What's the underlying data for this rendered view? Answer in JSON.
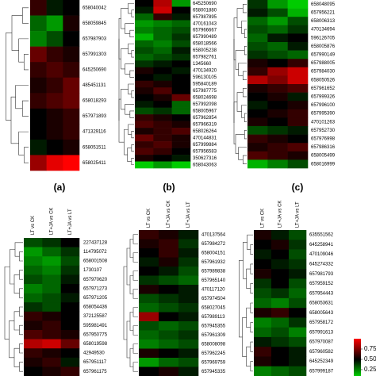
{
  "chart_data": [
    {
      "type": "heatmap",
      "panel_label": "(a)",
      "rows": [
        "658040042",
        "658059845",
        "657987903",
        "657991303",
        "645250690",
        "485451131",
        "658018293",
        "657971893",
        "471329116",
        "658051511",
        "658025411"
      ],
      "values": [
        [
          0.6,
          0.45,
          0.5
        ],
        [
          0.3,
          0.2,
          0.55
        ],
        [
          0.25,
          0.35,
          0.5
        ],
        [
          0.7,
          0.6,
          0.55
        ],
        [
          0.6,
          0.65,
          0.6
        ],
        [
          0.55,
          0.6,
          0.7
        ],
        [
          0.6,
          0.65,
          0.7
        ],
        [
          0.5,
          0.55,
          0.6
        ],
        [
          0.5,
          0.55,
          0.6
        ],
        [
          0.45,
          0.5,
          0.55
        ],
        [
          0.8,
          0.95,
          1.0
        ]
      ]
    },
    {
      "type": "heatmap",
      "panel_label": "(b)",
      "rows": [
        "645250690",
        "658001880",
        "657987895",
        "470161043",
        "657966667",
        "657990489",
        "658018566",
        "658005238",
        "657982761",
        "1345660",
        "470134920",
        "596130105",
        "595840189",
        "657987775",
        "658024698",
        "657992098",
        "658005967",
        "657962854",
        "657966319",
        "658026264",
        "470144831",
        "657999884",
        "657956583",
        "350627316",
        "658043063"
      ],
      "values": [
        [
          0.5,
          0.85,
          0.2
        ],
        [
          0.45,
          0.9,
          0.5
        ],
        [
          0.3,
          0.6,
          0.45
        ],
        [
          0.2,
          0.25,
          0.3
        ],
        [
          0.25,
          0.3,
          0.35
        ],
        [
          0.15,
          0.3,
          0.4
        ],
        [
          0.3,
          0.25,
          0.35
        ],
        [
          0.35,
          0.3,
          0.45
        ],
        [
          0.3,
          0.35,
          0.4
        ],
        [
          0.4,
          0.45,
          0.5
        ],
        [
          0.55,
          0.5,
          0.45
        ],
        [
          0.5,
          0.45,
          0.5
        ],
        [
          0.6,
          0.55,
          0.5
        ],
        [
          0.55,
          0.65,
          0.5
        ],
        [
          0.5,
          0.55,
          0.7
        ],
        [
          0.45,
          0.5,
          0.3
        ],
        [
          0.35,
          0.4,
          0.3
        ],
        [
          0.6,
          0.55,
          0.5
        ],
        [
          0.65,
          0.6,
          0.55
        ],
        [
          0.55,
          0.6,
          0.65
        ],
        [
          0.7,
          0.6,
          0.55
        ],
        [
          0.6,
          0.65,
          0.55
        ],
        [
          0.65,
          0.6,
          0.5
        ],
        [
          0.55,
          0.5,
          0.45
        ],
        [
          0.1,
          0.2,
          0.1
        ]
      ]
    },
    {
      "type": "heatmap",
      "panel_label": "(c)",
      "rows": [
        "658048095",
        "657956221",
        "658006313",
        "470134694",
        "596126705",
        "658005876",
        "657990149",
        "657988005",
        "657984030",
        "658050526",
        "657961652",
        "657999326",
        "657996100",
        "657995390",
        "470101263",
        "657952730",
        "657976998",
        "657986316",
        "658005499",
        "658016999"
      ],
      "values": [
        [
          0.4,
          0.2,
          0.1
        ],
        [
          0.45,
          0.35,
          0.15
        ],
        [
          0.3,
          0.2,
          0.35
        ],
        [
          0.35,
          0.3,
          0.4
        ],
        [
          0.3,
          0.45,
          0.5
        ],
        [
          0.35,
          0.3,
          0.45
        ],
        [
          0.4,
          0.35,
          0.3
        ],
        [
          0.55,
          0.5,
          0.6
        ],
        [
          0.6,
          0.8,
          0.9
        ],
        [
          0.85,
          0.75,
          0.9
        ],
        [
          0.55,
          0.6,
          0.65
        ],
        [
          0.5,
          0.55,
          0.45
        ],
        [
          0.45,
          0.5,
          0.55
        ],
        [
          0.5,
          0.55,
          0.6
        ],
        [
          0.55,
          0.5,
          0.6
        ],
        [
          0.35,
          0.4,
          0.45
        ],
        [
          0.6,
          0.55,
          0.5
        ],
        [
          0.55,
          0.6,
          0.65
        ],
        [
          0.65,
          0.6,
          0.55
        ],
        [
          0.15,
          0.25,
          0.35
        ]
      ]
    },
    {
      "type": "heatmap",
      "columns": [
        "LT vs CK",
        "LT+JA vs CK",
        "LT+JA vs LT"
      ],
      "rows": [
        "227437128",
        "114795072",
        "658001508",
        "1730107",
        "657970620",
        "657971273",
        "657971205",
        "658054436",
        "372125587",
        "595981491",
        "657950775",
        "658019598",
        "42949530",
        "657951117",
        "657961175"
      ],
      "values": [
        [
          0.35,
          0.4,
          0.5
        ],
        [
          0.2,
          0.3,
          0.4
        ],
        [
          0.25,
          0.2,
          0.35
        ],
        [
          0.3,
          0.25,
          0.4
        ],
        [
          0.35,
          0.3,
          0.45
        ],
        [
          0.25,
          0.3,
          0.5
        ],
        [
          0.3,
          0.35,
          0.45
        ],
        [
          0.4,
          0.35,
          0.5
        ],
        [
          0.6,
          0.55,
          0.5
        ],
        [
          0.55,
          0.6,
          0.5
        ],
        [
          0.65,
          0.6,
          0.55
        ],
        [
          0.85,
          0.9,
          0.7
        ],
        [
          0.6,
          0.55,
          0.5
        ],
        [
          0.55,
          0.6,
          0.45
        ],
        [
          0.5,
          0.55,
          0.6
        ]
      ]
    },
    {
      "type": "heatmap",
      "columns": [
        "LT vs CK",
        "LT+JA vs CK",
        "LT+JA vs LT"
      ],
      "rows": [
        "470137564",
        "657984272",
        "658004151",
        "657961932",
        "657989838",
        "657965140",
        "470117120",
        "657974504",
        "658027045",
        "657989113",
        "657945355",
        "657961309",
        "658008098",
        "657962245",
        "657969759",
        "657945335"
      ],
      "values": [
        [
          0.6,
          0.55,
          0.45
        ],
        [
          0.55,
          0.6,
          0.4
        ],
        [
          0.5,
          0.6,
          0.45
        ],
        [
          0.45,
          0.55,
          0.4
        ],
        [
          0.5,
          0.45,
          0.35
        ],
        [
          0.4,
          0.35,
          0.3
        ],
        [
          0.55,
          0.5,
          0.45
        ],
        [
          0.35,
          0.4,
          0.45
        ],
        [
          0.3,
          0.35,
          0.4
        ],
        [
          0.8,
          0.5,
          0.45
        ],
        [
          0.35,
          0.3,
          0.35
        ],
        [
          0.3,
          0.35,
          0.4
        ],
        [
          0.25,
          0.3,
          0.35
        ],
        [
          0.55,
          0.5,
          0.45
        ],
        [
          0.2,
          0.3,
          0.35
        ],
        [
          0.5,
          0.55,
          0.45
        ]
      ]
    },
    {
      "type": "heatmap",
      "columns": [
        "LT vs CK",
        "LT+JA vs CK",
        "LT+JA vs LT"
      ],
      "rows": [
        "635551562",
        "645258941",
        "470109046",
        "645274332",
        "657981793",
        "657959152",
        "657954443",
        "658053631",
        "658005643",
        "657958172",
        "657991613",
        "657970087",
        "657960582",
        "645252349",
        "657999187"
      ],
      "values": [
        [
          0.55,
          0.45,
          0.35
        ],
        [
          0.5,
          0.55,
          0.4
        ],
        [
          0.45,
          0.5,
          0.35
        ],
        [
          0.5,
          0.45,
          0.4
        ],
        [
          0.55,
          0.5,
          0.45
        ],
        [
          0.4,
          0.5,
          0.35
        ],
        [
          0.35,
          0.4,
          0.3
        ],
        [
          0.3,
          0.25,
          0.35
        ],
        [
          0.55,
          0.6,
          0.5
        ],
        [
          0.25,
          0.3,
          0.4
        ],
        [
          0.3,
          0.35,
          0.25
        ],
        [
          0.45,
          0.4,
          0.35
        ],
        [
          0.6,
          0.5,
          0.45
        ],
        [
          0.55,
          0.5,
          0.45
        ],
        [
          0.25,
          0.3,
          0.35
        ]
      ],
      "colorbar": {
        "lim": [
          0,
          1
        ],
        "ticks": [
          0.75,
          {
            "value": 0.5,
            "label": "0.50"
          },
          0.25
        ],
        "colors": [
          "#00ff00",
          "#000000",
          "#ff0000"
        ]
      }
    }
  ]
}
